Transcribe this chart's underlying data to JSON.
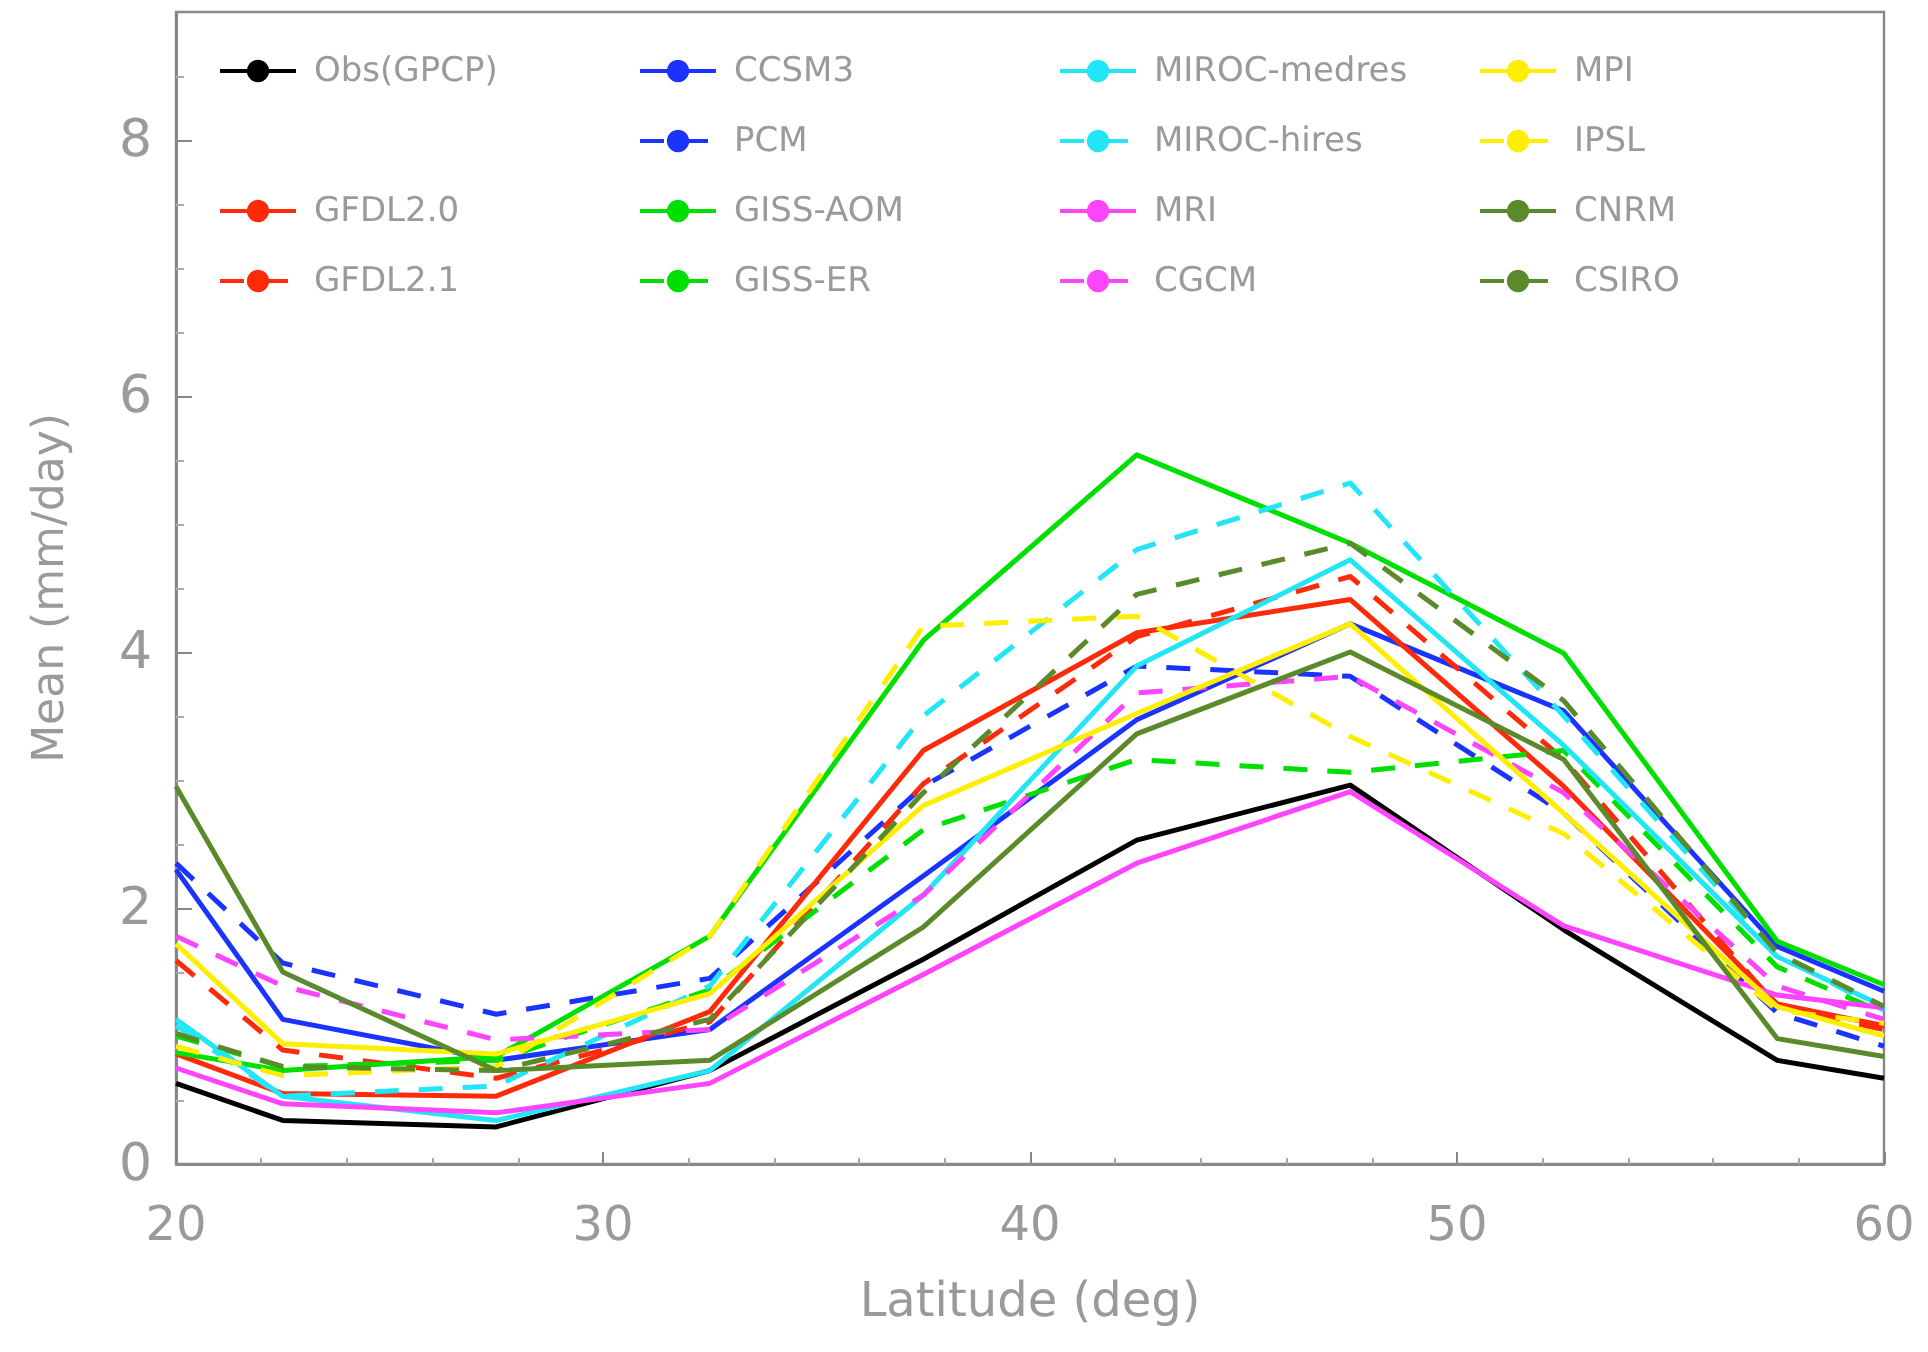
{
  "chart_data": {
    "type": "line",
    "xlabel": "Latitude (deg)",
    "ylabel": "Mean (mm/day)",
    "x": [
      20,
      22.5,
      27.5,
      32.5,
      37.5,
      42.5,
      47.5,
      52.5,
      57.5,
      60
    ],
    "xlim": [
      20,
      60
    ],
    "xticks": [
      20,
      30,
      40,
      50,
      60
    ],
    "ylim": [
      0,
      9
    ],
    "yticks": [
      0,
      2,
      4,
      6,
      8
    ],
    "grid": false,
    "legend": "top",
    "marker": "none",
    "series": [
      {
        "name": "Obs(GPCP)",
        "color": "#000000",
        "line_style": "solid",
        "values": [
          0.63,
          0.34,
          0.29,
          0.73,
          1.6,
          2.53,
          2.96,
          1.83,
          0.81,
          0.67
        ]
      },
      {
        "name": "CCSM3",
        "color": "#1a33ff",
        "line_style": "solid",
        "values": [
          2.3,
          1.13,
          0.81,
          1.05,
          2.25,
          3.47,
          4.22,
          3.54,
          1.7,
          1.35
        ]
      },
      {
        "name": "PCM",
        "color": "#1a33ff",
        "line_style": "dashed",
        "values": [
          2.35,
          1.57,
          1.17,
          1.45,
          2.95,
          3.89,
          3.81,
          2.74,
          1.18,
          0.92
        ]
      },
      {
        "name": "GFDL2.0",
        "color": "#ff2a0a",
        "line_style": "solid",
        "values": [
          0.86,
          0.55,
          0.53,
          1.19,
          3.23,
          4.15,
          4.41,
          2.95,
          1.25,
          1.08
        ]
      },
      {
        "name": "GFDL2.1",
        "color": "#ff2a0a",
        "line_style": "dashed",
        "values": [
          1.59,
          0.89,
          0.67,
          1.11,
          2.97,
          4.12,
          4.59,
          3.16,
          1.23,
          1.05
        ]
      },
      {
        "name": "GISS-AOM",
        "color": "#00e000",
        "line_style": "solid",
        "values": [
          0.87,
          0.73,
          0.84,
          1.78,
          4.09,
          5.54,
          4.85,
          3.99,
          1.74,
          1.4
        ]
      },
      {
        "name": "GISS-ER",
        "color": "#00e000",
        "line_style": "dashed",
        "values": [
          1.0,
          0.76,
          0.81,
          1.36,
          2.61,
          3.16,
          3.06,
          3.23,
          1.54,
          1.18
        ]
      },
      {
        "name": "MIROC-medres",
        "color": "#22e5f5",
        "line_style": "solid",
        "values": [
          1.13,
          0.53,
          0.34,
          0.73,
          2.1,
          3.89,
          4.72,
          3.27,
          1.62,
          1.23
        ]
      },
      {
        "name": "MIROC-hires",
        "color": "#22e5f5",
        "line_style": "dashed",
        "values": [
          1.08,
          0.53,
          0.61,
          1.39,
          3.5,
          4.8,
          5.32,
          3.5,
          1.64,
          1.2
        ]
      },
      {
        "name": "MRI",
        "color": "#ff44ff",
        "line_style": "solid",
        "values": [
          0.75,
          0.47,
          0.4,
          0.63,
          1.48,
          2.35,
          2.91,
          1.86,
          1.32,
          1.22
        ]
      },
      {
        "name": "CGCM",
        "color": "#ff44ff",
        "line_style": "dashed",
        "values": [
          1.78,
          1.39,
          0.97,
          1.05,
          2.1,
          3.68,
          3.81,
          2.9,
          1.39,
          1.13
        ]
      },
      {
        "name": "MPI",
        "color": "#ffee00",
        "line_style": "solid",
        "values": [
          1.72,
          0.94,
          0.86,
          1.33,
          2.8,
          3.52,
          4.22,
          2.74,
          1.23,
          1.0
        ]
      },
      {
        "name": "IPSL",
        "color": "#ffee00",
        "line_style": "dashed",
        "values": [
          0.92,
          0.69,
          0.76,
          1.78,
          4.2,
          4.28,
          3.34,
          2.58,
          1.2,
          1.1
        ]
      },
      {
        "name": "CNRM",
        "color": "#5a8a2a",
        "line_style": "solid",
        "values": [
          2.95,
          1.5,
          0.73,
          0.81,
          1.85,
          3.36,
          4.0,
          3.16,
          0.98,
          0.84
        ]
      },
      {
        "name": "CSIRO",
        "color": "#5a8a2a",
        "line_style": "dashed",
        "values": [
          1.02,
          0.76,
          0.73,
          1.13,
          2.9,
          4.45,
          4.85,
          3.62,
          1.65,
          1.23
        ]
      }
    ]
  }
}
